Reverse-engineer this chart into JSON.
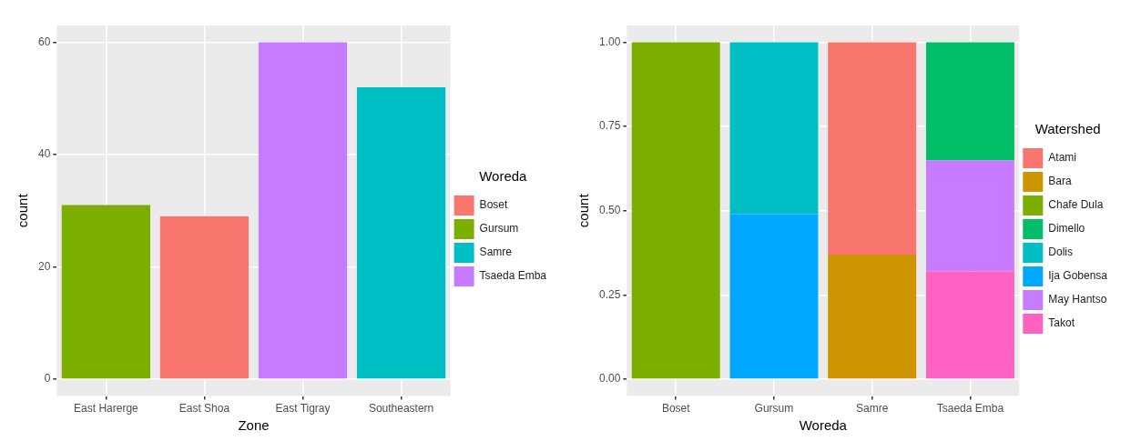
{
  "chart_data": [
    {
      "type": "bar",
      "xlabel": "Zone",
      "ylabel": "count",
      "legend_title": "Woreda",
      "legend": "right",
      "grid": true,
      "categories": [
        "East Harerge",
        "East Shoa",
        "East Tigray",
        "Southeastern"
      ],
      "ylim": [
        -3,
        63
      ],
      "yticks": [
        0,
        20,
        40,
        60
      ],
      "series": [
        {
          "name": "Boset",
          "color": "#f8766d",
          "values": [
            null,
            29,
            null,
            null
          ]
        },
        {
          "name": "Gursum",
          "color": "#7cae00",
          "values": [
            31,
            null,
            null,
            null
          ]
        },
        {
          "name": "Samre",
          "color": "#00bfc4",
          "values": [
            null,
            null,
            null,
            52
          ]
        },
        {
          "name": "Tsaeda Emba",
          "color": "#c77cff",
          "values": [
            null,
            null,
            60,
            null
          ]
        }
      ]
    },
    {
      "type": "bar",
      "stacked": true,
      "xlabel": "Woreda",
      "ylabel": "count",
      "legend_title": "Watershed",
      "legend": "right",
      "grid": true,
      "categories": [
        "Boset",
        "Gursum",
        "Samre",
        "Tsaeda Emba"
      ],
      "ylim": [
        -0.05,
        1.05
      ],
      "yticks": [
        {
          "value": 0,
          "label": "0.00"
        },
        {
          "value": 0.25,
          "label": "0.25"
        },
        {
          "value": 0.5,
          "label": "0.50"
        },
        {
          "value": 0.75,
          "label": "0.75"
        },
        {
          "value": 1,
          "label": "1.00"
        }
      ],
      "series": [
        {
          "name": "Takot",
          "color": "#ff61c3",
          "values": [
            null,
            null,
            null,
            0.32
          ]
        },
        {
          "name": "May Hantso",
          "color": "#c77cff",
          "values": [
            null,
            null,
            null,
            0.33
          ]
        },
        {
          "name": "Ija Gobensa",
          "color": "#00a9ff",
          "values": [
            null,
            0.49,
            null,
            null
          ]
        },
        {
          "name": "Dolis",
          "color": "#00bfc4",
          "values": [
            null,
            0.51,
            null,
            null
          ]
        },
        {
          "name": "Dimello",
          "color": "#00be67",
          "values": [
            null,
            null,
            null,
            0.35
          ]
        },
        {
          "name": "Chafe Dula",
          "color": "#7cae00",
          "values": [
            1,
            null,
            null,
            null
          ]
        },
        {
          "name": "Bara",
          "color": "#cd9600",
          "values": [
            null,
            null,
            0.37,
            null
          ]
        },
        {
          "name": "Atami",
          "color": "#f8766d",
          "values": [
            null,
            null,
            0.63,
            null
          ]
        }
      ]
    }
  ]
}
